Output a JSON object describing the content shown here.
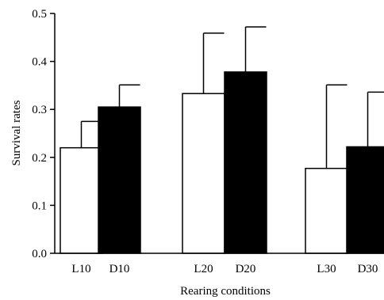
{
  "chart_data": {
    "type": "bar",
    "xlabel": "Rearing conditions",
    "ylabel": "Survival rates",
    "ylim": [
      0,
      0.5
    ],
    "yticks": [
      "0.0",
      "0.1",
      "0.2",
      "0.3",
      "0.4",
      "0.5"
    ],
    "grid": false,
    "bars": [
      {
        "category": "L10",
        "value": 0.22,
        "error": 0.055,
        "color": "#ffffff"
      },
      {
        "category": "D10",
        "value": 0.305,
        "error": 0.046,
        "color": "#000000"
      },
      {
        "category": "L20",
        "value": 0.333,
        "error": 0.126,
        "color": "#ffffff"
      },
      {
        "category": "D20",
        "value": 0.378,
        "error": 0.094,
        "color": "#000000"
      },
      {
        "category": "L30",
        "value": 0.177,
        "error": 0.174,
        "color": "#ffffff"
      },
      {
        "category": "D30",
        "value": 0.222,
        "error": 0.114,
        "color": "#000000"
      }
    ]
  }
}
